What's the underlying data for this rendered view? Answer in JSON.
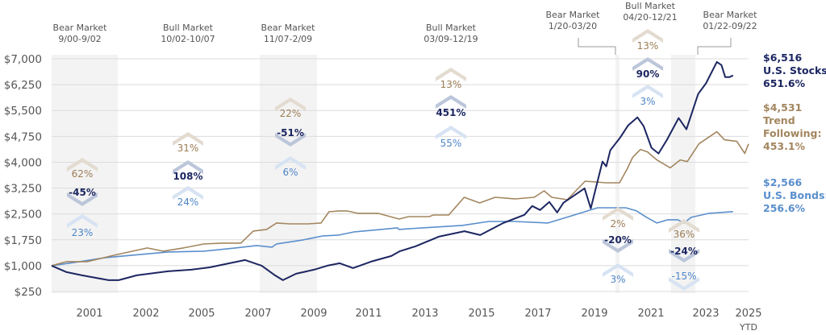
{
  "chart_data": {
    "type": "line",
    "title": "",
    "xlabel": "",
    "ylabel": "",
    "grid": true,
    "ylim": [
      250,
      7000
    ],
    "y_ticks": [
      "$7,000",
      "$6,250",
      "$5,500",
      "$4,750",
      "$4,000",
      "$3,250",
      "$2,500",
      "$1,750",
      "$1,000",
      "$250"
    ],
    "y_tick_values": [
      7000,
      6250,
      5500,
      4750,
      4000,
      3250,
      2500,
      1750,
      1000,
      250
    ],
    "x_ticks": [
      "2001",
      "2002",
      "2005",
      "2007",
      "2009",
      "2011",
      "2013",
      "2015",
      "2017",
      "2019",
      "2021",
      "2023",
      "2025"
    ],
    "x_tick_sub": "YTD",
    "colors": {
      "stocks": "#1c2661",
      "trend": "#a3865f",
      "bonds": "#5a8fcc",
      "shade": "#f3f3f3",
      "grid": "#dcdcdc",
      "label": "#555555"
    },
    "periods": [
      {
        "kind": "Bear Market",
        "range": "9/00-9/02",
        "shaded": true,
        "returns": {
          "trend": "62%",
          "stocks": "-45%",
          "bonds": "23%"
        }
      },
      {
        "kind": "Bull Market",
        "range": "10/02-10/07",
        "shaded": false,
        "returns": {
          "trend": "31%",
          "stocks": "108%",
          "bonds": "24%"
        }
      },
      {
        "kind": "Bear Market",
        "range": "11/07-2/09",
        "shaded": true,
        "returns": {
          "trend": "22%",
          "stocks": "-51%",
          "bonds": "6%"
        }
      },
      {
        "kind": "Bull Market",
        "range": "03/09-12/19",
        "shaded": false,
        "returns": {
          "trend": "13%",
          "stocks": "451%",
          "bonds": "55%"
        }
      },
      {
        "kind": "Bear Market",
        "range": "1/20-03/20",
        "shaded": true,
        "returns": {
          "trend": "2%",
          "stocks": "-20%",
          "bonds": "3%"
        }
      },
      {
        "kind": "Bull Market",
        "range": "04/20-12/21",
        "shaded": false,
        "returns": {
          "trend": "13%",
          "stocks": "90%",
          "bonds": "3%"
        }
      },
      {
        "kind": "Bear Market",
        "range": "01/22-09/22",
        "shaded": true,
        "returns": {
          "trend": "36%",
          "stocks": "-24%",
          "bonds": "-15%"
        }
      }
    ],
    "series": [
      {
        "key": "stocks",
        "end_value": "$6,516",
        "name_lines": [
          "U.S. Stocks:"
        ],
        "end_return": "651.6%",
        "points": [
          [
            2000.67,
            1000
          ],
          [
            2001.22,
            813
          ],
          [
            2001.79,
            720
          ],
          [
            2002.77,
            580
          ],
          [
            2003.15,
            580
          ],
          [
            2003.81,
            720
          ],
          [
            2004.96,
            837
          ],
          [
            2005.82,
            883
          ],
          [
            2006.52,
            953
          ],
          [
            2007.09,
            1047
          ],
          [
            2007.81,
            1163
          ],
          [
            2008.42,
            1000
          ],
          [
            2008.91,
            720
          ],
          [
            2009.2,
            580
          ],
          [
            2009.69,
            767
          ],
          [
            2010.35,
            883
          ],
          [
            2010.84,
            1000
          ],
          [
            2011.3,
            1070
          ],
          [
            2011.79,
            930
          ],
          [
            2012.45,
            1117
          ],
          [
            2013.52,
            1420
          ],
          [
            2013.2,
            1280
          ],
          [
            2014.09,
            1560
          ],
          [
            2014.95,
            1840
          ],
          [
            2015.9,
            2000
          ],
          [
            2016.48,
            1887
          ],
          [
            2017.34,
            2240
          ],
          [
            2018.11,
            2473
          ],
          [
            2018.4,
            2730
          ],
          [
            2018.69,
            2613
          ],
          [
            2019.03,
            2847
          ],
          [
            2019.32,
            2543
          ],
          [
            2019.55,
            2823
          ],
          [
            2020.33,
            3243
          ],
          [
            2020.56,
            2660
          ],
          [
            2020.99,
            4020
          ],
          [
            2021.13,
            3880
          ],
          [
            2021.28,
            4347
          ],
          [
            2021.65,
            4720
          ],
          [
            2021.94,
            5070
          ],
          [
            2022.28,
            5303
          ],
          [
            2022.51,
            5047
          ],
          [
            2022.8,
            4417
          ],
          [
            2023.06,
            4253
          ],
          [
            2023.37,
            4650
          ],
          [
            2023.8,
            5280
          ],
          [
            2024.09,
            4953
          ],
          [
            2024.52,
            5980
          ],
          [
            2024.81,
            6287
          ],
          [
            2025.21,
            6910
          ],
          [
            2025.38,
            6817
          ],
          [
            2025.52,
            6467
          ],
          [
            2025.67,
            6467
          ],
          [
            2025.81,
            6516
          ]
        ]
      },
      {
        "key": "trend",
        "end_value": "$4,531",
        "name_lines": [
          "Trend",
          "Following:"
        ],
        "end_return": "453.1%",
        "points": [
          [
            2000.67,
            1000
          ],
          [
            2001.22,
            1117
          ],
          [
            2001.99,
            1117
          ],
          [
            2002.85,
            1280
          ],
          [
            2004.2,
            1513
          ],
          [
            2004.78,
            1420
          ],
          [
            2005.53,
            1513
          ],
          [
            2006.3,
            1630
          ],
          [
            2006.96,
            1653
          ],
          [
            2007.65,
            1653
          ],
          [
            2008.11,
            2003
          ],
          [
            2008.6,
            2050
          ],
          [
            2008.97,
            2237
          ],
          [
            2009.46,
            2213
          ],
          [
            2010.12,
            2213
          ],
          [
            2010.61,
            2237
          ],
          [
            2010.9,
            2563
          ],
          [
            2011.28,
            2587
          ],
          [
            2011.56,
            2587
          ],
          [
            2011.96,
            2517
          ],
          [
            2012.71,
            2517
          ],
          [
            2013.49,
            2353
          ],
          [
            2013.84,
            2423
          ],
          [
            2014.6,
            2423
          ],
          [
            2014.75,
            2470
          ],
          [
            2015.32,
            2470
          ],
          [
            2015.89,
            2983
          ],
          [
            2016.46,
            2820
          ],
          [
            2017.03,
            2983
          ],
          [
            2017.78,
            2937
          ],
          [
            2018.47,
            2983
          ],
          [
            2018.84,
            3170
          ],
          [
            2019.12,
            2983
          ],
          [
            2019.69,
            2913
          ],
          [
            2020.35,
            3450
          ],
          [
            2021.13,
            3403
          ],
          [
            2021.62,
            3403
          ],
          [
            2021.9,
            3800
          ],
          [
            2022.1,
            4137
          ],
          [
            2022.39,
            4370
          ],
          [
            2022.65,
            4300
          ],
          [
            2023.0,
            4067
          ],
          [
            2023.49,
            3837
          ],
          [
            2023.86,
            4067
          ],
          [
            2024.12,
            4020
          ],
          [
            2024.55,
            4533
          ],
          [
            2025.21,
            4883
          ],
          [
            2025.49,
            4650
          ],
          [
            2025.95,
            4603
          ],
          [
            2026.24,
            4253
          ],
          [
            2026.38,
            4531
          ]
        ]
      },
      {
        "key": "bonds",
        "end_value": "$2,566",
        "name_lines": [
          "U.S. Bonds:"
        ],
        "end_return": "256.6%",
        "points": [
          [
            2000.67,
            1000
          ],
          [
            2001.71,
            1117
          ],
          [
            2002.66,
            1233
          ],
          [
            2003.64,
            1303
          ],
          [
            2004.96,
            1397
          ],
          [
            2006.3,
            1420
          ],
          [
            2007.45,
            1513
          ],
          [
            2008.23,
            1583
          ],
          [
            2008.8,
            1537
          ],
          [
            2008.97,
            1630
          ],
          [
            2009.95,
            1747
          ],
          [
            2010.69,
            1863
          ],
          [
            2011.27,
            1887
          ],
          [
            2011.84,
            1980
          ],
          [
            2012.82,
            2050
          ],
          [
            2013.48,
            2050
          ],
          [
            2013.43,
            2097
          ],
          [
            2014.38,
            2097
          ],
          [
            2015.82,
            2167
          ],
          [
            2016.8,
            2283
          ],
          [
            2017.75,
            2283
          ],
          [
            2018.98,
            2237
          ],
          [
            2019.95,
            2470
          ],
          [
            2020.81,
            2680
          ],
          [
            2021.85,
            2680
          ],
          [
            2022.25,
            2587
          ],
          [
            2022.62,
            2400
          ],
          [
            2023.0,
            2237
          ],
          [
            2023.4,
            2330
          ],
          [
            2023.77,
            2330
          ],
          [
            2024.0,
            2237
          ],
          [
            2024.26,
            2400
          ],
          [
            2024.92,
            2517
          ],
          [
            2025.81,
            2566
          ]
        ]
      }
    ]
  }
}
